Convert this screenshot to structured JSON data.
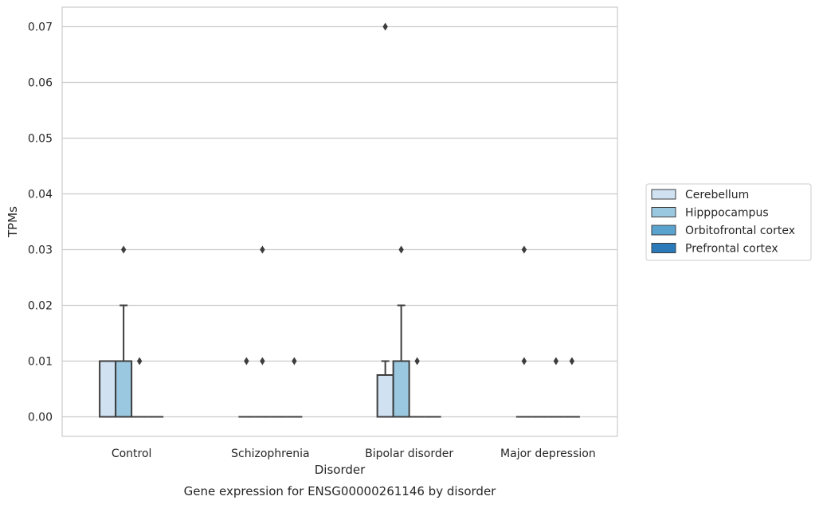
{
  "chart_data": {
    "type": "box",
    "xlabel": "Disorder",
    "ylabel": "TPMs",
    "caption": "Gene expression for ENSG00000261146 by disorder",
    "categories": [
      "Control",
      "Schizophrenia",
      "Bipolar disorder",
      "Major depression"
    ],
    "ylim": [
      -0.0035,
      0.0735
    ],
    "yticks": [
      "0.00",
      "0.01",
      "0.02",
      "0.03",
      "0.04",
      "0.05",
      "0.06",
      "0.07"
    ],
    "ytick_values": [
      0.0,
      0.01,
      0.02,
      0.03,
      0.04,
      0.05,
      0.06,
      0.07
    ],
    "grid": true,
    "legend_position": "right",
    "series": [
      {
        "name": "Cerebellum",
        "color": "#d0e1f2",
        "boxes": [
          {
            "q1": 0.0,
            "median": 0.0,
            "q3": 0.01,
            "whisker_low": 0.0,
            "whisker_high": 0.01,
            "outliers": []
          },
          {
            "q1": 0.0,
            "median": 0.0,
            "q3": 0.0,
            "whisker_low": 0.0,
            "whisker_high": 0.0,
            "outliers": [
              0.01
            ]
          },
          {
            "q1": 0.0,
            "median": 0.0,
            "q3": 0.0075,
            "whisker_low": 0.0,
            "whisker_high": 0.01,
            "outliers": [
              0.07
            ]
          },
          {
            "q1": 0.0,
            "median": 0.0,
            "q3": 0.0,
            "whisker_low": 0.0,
            "whisker_high": 0.0,
            "outliers": [
              0.03,
              0.01
            ]
          }
        ]
      },
      {
        "name": "Hipppocampus",
        "color": "#9ac8e0",
        "boxes": [
          {
            "q1": 0.0,
            "median": 0.0,
            "q3": 0.01,
            "whisker_low": 0.0,
            "whisker_high": 0.02,
            "outliers": [
              0.03
            ]
          },
          {
            "q1": 0.0,
            "median": 0.0,
            "q3": 0.0,
            "whisker_low": 0.0,
            "whisker_high": 0.0,
            "outliers": [
              0.03,
              0.01
            ]
          },
          {
            "q1": 0.0,
            "median": 0.0,
            "q3": 0.01,
            "whisker_low": 0.0,
            "whisker_high": 0.02,
            "outliers": [
              0.03
            ]
          },
          {
            "q1": 0.0,
            "median": 0.0,
            "q3": 0.0,
            "whisker_low": 0.0,
            "whisker_high": 0.0,
            "outliers": []
          }
        ]
      },
      {
        "name": "Orbitofrontal cortex",
        "color": "#5ba3cf",
        "boxes": [
          {
            "q1": 0.0,
            "median": 0.0,
            "q3": 0.0,
            "whisker_low": 0.0,
            "whisker_high": 0.0,
            "outliers": [
              0.01
            ]
          },
          {
            "q1": 0.0,
            "median": 0.0,
            "q3": 0.0,
            "whisker_low": 0.0,
            "whisker_high": 0.0,
            "outliers": []
          },
          {
            "q1": 0.0,
            "median": 0.0,
            "q3": 0.0,
            "whisker_low": 0.0,
            "whisker_high": 0.0,
            "outliers": [
              0.01
            ]
          },
          {
            "q1": 0.0,
            "median": 0.0,
            "q3": 0.0,
            "whisker_low": 0.0,
            "whisker_high": 0.0,
            "outliers": [
              0.01
            ]
          }
        ]
      },
      {
        "name": "Prefrontal cortex",
        "color": "#2a7ab9",
        "boxes": [
          {
            "q1": 0.0,
            "median": 0.0,
            "q3": 0.0,
            "whisker_low": 0.0,
            "whisker_high": 0.0,
            "outliers": []
          },
          {
            "q1": 0.0,
            "median": 0.0,
            "q3": 0.0,
            "whisker_low": 0.0,
            "whisker_high": 0.0,
            "outliers": [
              0.01
            ]
          },
          {
            "q1": 0.0,
            "median": 0.0,
            "q3": 0.0,
            "whisker_low": 0.0,
            "whisker_high": 0.0,
            "outliers": []
          },
          {
            "q1": 0.0,
            "median": 0.0,
            "q3": 0.0,
            "whisker_low": 0.0,
            "whisker_high": 0.0,
            "outliers": [
              0.01
            ]
          }
        ]
      }
    ]
  }
}
